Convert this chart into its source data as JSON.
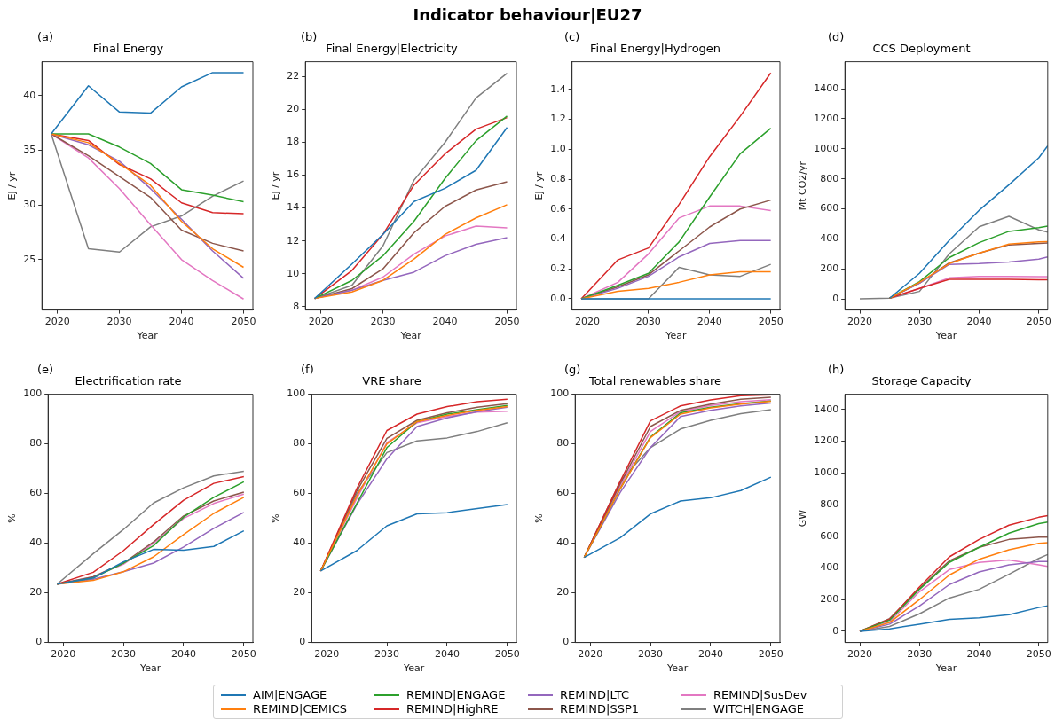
{
  "chart_data": [
    {
      "type": "line",
      "title": "Final Energy",
      "xlabel": "Year",
      "ylabel": "EJ / yr",
      "annotations": [
        "Indicator behaviour|EU27",
        "(a)"
      ],
      "legend": "bottom",
      "x": [
        2019,
        2025,
        2030,
        2035,
        2040,
        2045,
        2050
      ],
      "xlim": [
        2017.5,
        2051.5
      ],
      "xticks": [
        2020,
        2030,
        2040,
        2050
      ],
      "ylim": [
        20.4,
        43.1
      ],
      "yticks": [
        25,
        30,
        35,
        40
      ],
      "series": [
        {
          "name": "AIM|ENGAGE",
          "color": "#1f77b4",
          "values": [
            36.5,
            40.9,
            38.5,
            38.4,
            40.8,
            42.1,
            42.1
          ]
        },
        {
          "name": "REMIND|CEMICS",
          "color": "#ff7f0e",
          "values": [
            36.5,
            35.7,
            33.8,
            31.8,
            28.5,
            26.0,
            24.3
          ]
        },
        {
          "name": "REMIND|ENGAGE",
          "color": "#2ca02c",
          "values": [
            36.5,
            36.5,
            35.3,
            33.8,
            31.4,
            30.9,
            30.3
          ]
        },
        {
          "name": "REMIND|HighRE",
          "color": "#d62728",
          "values": [
            36.5,
            35.9,
            33.7,
            32.4,
            30.2,
            29.3,
            29.2
          ]
        },
        {
          "name": "REMIND|LTC",
          "color": "#9467bd",
          "values": [
            36.5,
            35.5,
            34.0,
            31.5,
            28.7,
            25.8,
            23.3
          ]
        },
        {
          "name": "REMIND|SSP1",
          "color": "#8c564b",
          "values": [
            36.5,
            34.5,
            32.6,
            30.7,
            27.7,
            26.5,
            25.8
          ]
        },
        {
          "name": "REMIND|SusDev",
          "color": "#e377c2",
          "values": [
            36.5,
            34.3,
            31.5,
            28.2,
            25.0,
            23.1,
            21.4
          ]
        },
        {
          "name": "WITCH|ENGAGE",
          "color": "#7f7f7f",
          "values": [
            36.5,
            26.0,
            25.7,
            28.0,
            29.0,
            30.8,
            32.2
          ]
        }
      ]
    },
    {
      "type": "line",
      "title": "Final Energy|Electricity",
      "xlabel": "Year",
      "ylabel": "EJ / yr",
      "annotations": [
        "(b)"
      ],
      "x": [
        2019,
        2025,
        2030,
        2035,
        2040,
        2045,
        2050
      ],
      "xlim": [
        2017.5,
        2051.5
      ],
      "xticks": [
        2020,
        2030,
        2040,
        2050
      ],
      "ylim": [
        7.8,
        22.9
      ],
      "yticks": [
        8,
        10,
        12,
        14,
        16,
        18,
        20,
        22
      ],
      "series": [
        {
          "color": "#1f77b4",
          "values": [
            8.5,
            10.6,
            12.4,
            14.4,
            15.2,
            16.3,
            18.9
          ]
        },
        {
          "color": "#ff7f0e",
          "values": [
            8.5,
            8.9,
            9.6,
            10.9,
            12.4,
            13.4,
            14.2
          ]
        },
        {
          "color": "#2ca02c",
          "values": [
            8.5,
            9.6,
            11.1,
            13.2,
            15.8,
            18.1,
            19.6
          ]
        },
        {
          "color": "#d62728",
          "values": [
            8.5,
            10.2,
            12.4,
            15.4,
            17.3,
            18.8,
            19.5
          ]
        },
        {
          "color": "#9467bd",
          "values": [
            8.5,
            9.0,
            9.6,
            10.1,
            11.1,
            11.8,
            12.2
          ]
        },
        {
          "color": "#8c564b",
          "values": [
            8.5,
            9.1,
            10.3,
            12.5,
            14.1,
            15.1,
            15.6
          ]
        },
        {
          "color": "#e377c2",
          "values": [
            8.5,
            9.0,
            9.8,
            11.2,
            12.3,
            12.9,
            12.8
          ]
        },
        {
          "color": "#7f7f7f",
          "values": [
            8.5,
            9.3,
            11.7,
            15.7,
            18.0,
            20.7,
            22.2
          ]
        }
      ]
    },
    {
      "type": "line",
      "title": "Final Energy|Hydrogen",
      "xlabel": "Year",
      "ylabel": "EJ / yr",
      "annotations": [
        "(c)"
      ],
      "x": [
        2019,
        2025,
        2030,
        2035,
        2040,
        2045,
        2050
      ],
      "xlim": [
        2017.5,
        2051.5
      ],
      "xticks": [
        2020,
        2030,
        2040,
        2050
      ],
      "ylim": [
        -0.075,
        1.585
      ],
      "yticks": [
        {
          "value": 0,
          "label": "0.0"
        },
        0.2,
        0.4,
        0.6,
        0.8,
        {
          "value": 1,
          "label": "1.0"
        },
        1.2,
        1.4
      ],
      "series": [
        {
          "color": "#1f77b4",
          "values": [
            0,
            0,
            0,
            0,
            0,
            0,
            0
          ]
        },
        {
          "color": "#ff7f0e",
          "values": [
            0,
            0.05,
            0.07,
            0.11,
            0.16,
            0.18,
            0.18
          ]
        },
        {
          "color": "#2ca02c",
          "values": [
            0,
            0.09,
            0.17,
            0.38,
            0.68,
            0.97,
            1.14
          ]
        },
        {
          "color": "#d62728",
          "values": [
            0,
            0.26,
            0.34,
            0.63,
            0.95,
            1.22,
            1.51
          ]
        },
        {
          "color": "#9467bd",
          "values": [
            0,
            0.07,
            0.15,
            0.28,
            0.37,
            0.39,
            0.39
          ]
        },
        {
          "color": "#8c564b",
          "values": [
            0,
            0.08,
            0.16,
            0.32,
            0.48,
            0.6,
            0.66
          ]
        },
        {
          "color": "#e377c2",
          "values": [
            0,
            0.11,
            0.3,
            0.54,
            0.62,
            0.62,
            0.59
          ]
        },
        {
          "color": "#7f7f7f",
          "values": [
            0,
            0,
            0,
            0.21,
            0.16,
            0.15,
            0.23
          ]
        }
      ]
    },
    {
      "type": "line",
      "title": "CCS Deployment",
      "xlabel": "Year",
      "ylabel": "Mt CO2/yr",
      "annotations": [
        "(d)"
      ],
      "x": [
        2020,
        2025,
        2030,
        2035,
        2040,
        2045,
        2050,
        2051.5
      ],
      "xlim": [
        2017.5,
        2051.5
      ],
      "xticks": [
        2020,
        2030,
        2040,
        2050
      ],
      "ylim": [
        -74,
        1580
      ],
      "yticks": [
        0,
        200,
        400,
        600,
        800,
        1000,
        1200,
        1400
      ],
      "series": [
        {
          "color": "#1f77b4",
          "values": [
            null,
            5,
            170,
            390,
            590,
            760,
            940,
            1020
          ]
        },
        {
          "color": "#ff7f0e",
          "values": [
            null,
            5,
            110,
            235,
            305,
            365,
            380,
            382
          ]
        },
        {
          "color": "#2ca02c",
          "values": [
            null,
            5,
            115,
            275,
            375,
            450,
            475,
            485
          ]
        },
        {
          "color": "#d62728",
          "values": [
            null,
            5,
            70,
            130,
            130,
            130,
            128,
            128
          ]
        },
        {
          "color": "#9467bd",
          "values": [
            null,
            5,
            105,
            230,
            235,
            245,
            265,
            280
          ]
        },
        {
          "color": "#8c564b",
          "values": [
            null,
            5,
            105,
            240,
            305,
            360,
            370,
            372
          ]
        },
        {
          "color": "#e377c2",
          "values": [
            null,
            5,
            70,
            140,
            150,
            150,
            148,
            148
          ]
        },
        {
          "color": "#7f7f7f",
          "values": [
            0,
            5,
            50,
            300,
            480,
            550,
            460,
            445
          ]
        }
      ]
    },
    {
      "type": "line",
      "title": "Electrification rate",
      "xlabel": "Year",
      "ylabel": "%",
      "annotations": [
        "(e)"
      ],
      "x": [
        2019,
        2025,
        2030,
        2035,
        2040,
        2045,
        2050
      ],
      "xlim": [
        2017.5,
        2051.5
      ],
      "xticks": [
        2020,
        2030,
        2040,
        2050
      ],
      "ylim": [
        0,
        100
      ],
      "yticks": [
        0,
        20,
        40,
        60,
        80,
        100
      ],
      "series": [
        {
          "color": "#1f77b4",
          "values": [
            23.5,
            26,
            32.5,
            37.5,
            37.2,
            38.7,
            45.0
          ]
        },
        {
          "color": "#ff7f0e",
          "values": [
            23.5,
            25,
            28.5,
            34.5,
            43.5,
            52,
            58.5
          ]
        },
        {
          "color": "#2ca02c",
          "values": [
            23.5,
            26,
            32,
            39,
            50.5,
            58.5,
            64.7
          ]
        },
        {
          "color": "#d62728",
          "values": [
            23.5,
            28.3,
            37.0,
            47.5,
            57.3,
            64.1,
            66.8
          ]
        },
        {
          "color": "#9467bd",
          "values": [
            23.5,
            25.5,
            28.5,
            32,
            38.5,
            46,
            52.4
          ]
        },
        {
          "color": "#8c564b",
          "values": [
            23.5,
            26.5,
            32,
            40.5,
            51,
            57,
            60.6
          ]
        },
        {
          "color": "#e377c2",
          "values": [
            23.5,
            26.5,
            31.5,
            40,
            50,
            56,
            59.8
          ]
        },
        {
          "color": "#7f7f7f",
          "values": [
            23.5,
            35.8,
            45.5,
            56.2,
            62.3,
            67.1,
            69.0
          ]
        }
      ]
    },
    {
      "type": "line",
      "title": "VRE share",
      "xlabel": "Year",
      "ylabel": "%",
      "annotations": [
        "(f)"
      ],
      "x": [
        2019,
        2025,
        2030,
        2035,
        2040,
        2045,
        2050
      ],
      "xlim": [
        2017.5,
        2051.5
      ],
      "xticks": [
        2020,
        2030,
        2040,
        2050
      ],
      "ylim": [
        0,
        100
      ],
      "yticks": [
        0,
        20,
        40,
        60,
        80,
        100
      ],
      "series": [
        {
          "color": "#1f77b4",
          "values": [
            28.8,
            37,
            47,
            51.8,
            52.3,
            54,
            55.6
          ]
        },
        {
          "color": "#ff7f0e",
          "values": [
            28.8,
            59,
            80,
            89,
            91.5,
            93.5,
            95
          ]
        },
        {
          "color": "#2ca02c",
          "values": [
            28.8,
            56,
            78.5,
            89,
            92,
            93.8,
            95.5
          ]
        },
        {
          "color": "#d62728",
          "values": [
            28.8,
            62,
            85.4,
            92,
            95,
            97,
            98
          ]
        },
        {
          "color": "#9467bd",
          "values": [
            28.8,
            55.5,
            74,
            87,
            90.5,
            93,
            94.8
          ]
        },
        {
          "color": "#8c564b",
          "values": [
            28.8,
            61,
            82.2,
            89.5,
            92.5,
            94.8,
            96.2
          ]
        },
        {
          "color": "#e377c2",
          "values": [
            28.8,
            58,
            80.5,
            88.5,
            91,
            92.8,
            93.2
          ]
        },
        {
          "color": "#7f7f7f",
          "values": [
            28.8,
            60,
            76.5,
            81.2,
            82.4,
            85,
            88.5
          ]
        }
      ]
    },
    {
      "type": "line",
      "title": "Total renewables share",
      "xlabel": "Year",
      "ylabel": "%",
      "annotations": [
        "(g)"
      ],
      "x": [
        2019,
        2025,
        2030,
        2035,
        2040,
        2045,
        2050
      ],
      "xlim": [
        2017.5,
        2051.5
      ],
      "xticks": [
        2020,
        2030,
        2040,
        2050
      ],
      "ylim": [
        0,
        100
      ],
      "yticks": [
        0,
        20,
        40,
        60,
        80,
        100
      ],
      "series": [
        {
          "color": "#1f77b4",
          "values": [
            34.3,
            42.2,
            51.8,
            57,
            58.3,
            61.2,
            66.6
          ]
        },
        {
          "color": "#ff7f0e",
          "values": [
            34.3,
            62,
            82.5,
            92,
            94.5,
            96,
            97.2
          ]
        },
        {
          "color": "#2ca02c",
          "values": [
            34.3,
            62,
            82.8,
            92.5,
            94.8,
            96.2,
            97.3
          ]
        },
        {
          "color": "#d62728",
          "values": [
            34.3,
            65,
            89.3,
            95.3,
            97.7,
            99.4,
            99.8
          ]
        },
        {
          "color": "#9467bd",
          "values": [
            34.3,
            60.5,
            78.5,
            91,
            93.5,
            95.3,
            96.5
          ]
        },
        {
          "color": "#8c564b",
          "values": [
            34.3,
            64,
            87,
            93.5,
            96,
            98,
            98.8
          ]
        },
        {
          "color": "#e377c2",
          "values": [
            34.3,
            63,
            85,
            93,
            95.5,
            97,
            97.8
          ]
        },
        {
          "color": "#7f7f7f",
          "values": [
            34.3,
            65,
            78.5,
            86,
            89.5,
            92.2,
            93.8
          ]
        }
      ]
    },
    {
      "type": "line",
      "title": "Storage Capacity",
      "xlabel": "Year",
      "ylabel": "GW",
      "annotations": [
        "(h)"
      ],
      "x": [
        2020,
        2025,
        2030,
        2035,
        2040,
        2045,
        2050,
        2051.5
      ],
      "xlim": [
        2017.5,
        2051.5
      ],
      "xticks": [
        2020,
        2030,
        2040,
        2050
      ],
      "ylim": [
        -71,
        1497
      ],
      "yticks": [
        0,
        200,
        400,
        600,
        800,
        1000,
        1200,
        1400
      ],
      "series": [
        {
          "color": "#1f77b4",
          "values": [
            0,
            15,
            45,
            75,
            85,
            105,
            150,
            160
          ]
        },
        {
          "color": "#ff7f0e",
          "values": [
            0,
            55,
            200,
            355,
            455,
            515,
            555,
            560
          ]
        },
        {
          "color": "#2ca02c",
          "values": [
            0,
            70,
            265,
            435,
            530,
            620,
            680,
            690
          ]
        },
        {
          "color": "#d62728",
          "values": [
            0,
            75,
            280,
            470,
            580,
            670,
            720,
            730
          ]
        },
        {
          "color": "#9467bd",
          "values": [
            0,
            45,
            160,
            295,
            375,
            420,
            440,
            440
          ]
        },
        {
          "color": "#8c564b",
          "values": [
            0,
            80,
            270,
            445,
            530,
            580,
            595,
            595
          ]
        },
        {
          "color": "#e377c2",
          "values": [
            0,
            60,
            250,
            390,
            435,
            450,
            420,
            410
          ]
        },
        {
          "color": "#7f7f7f",
          "values": [
            0,
            30,
            110,
            210,
            265,
            360,
            460,
            485
          ]
        }
      ]
    }
  ]
}
